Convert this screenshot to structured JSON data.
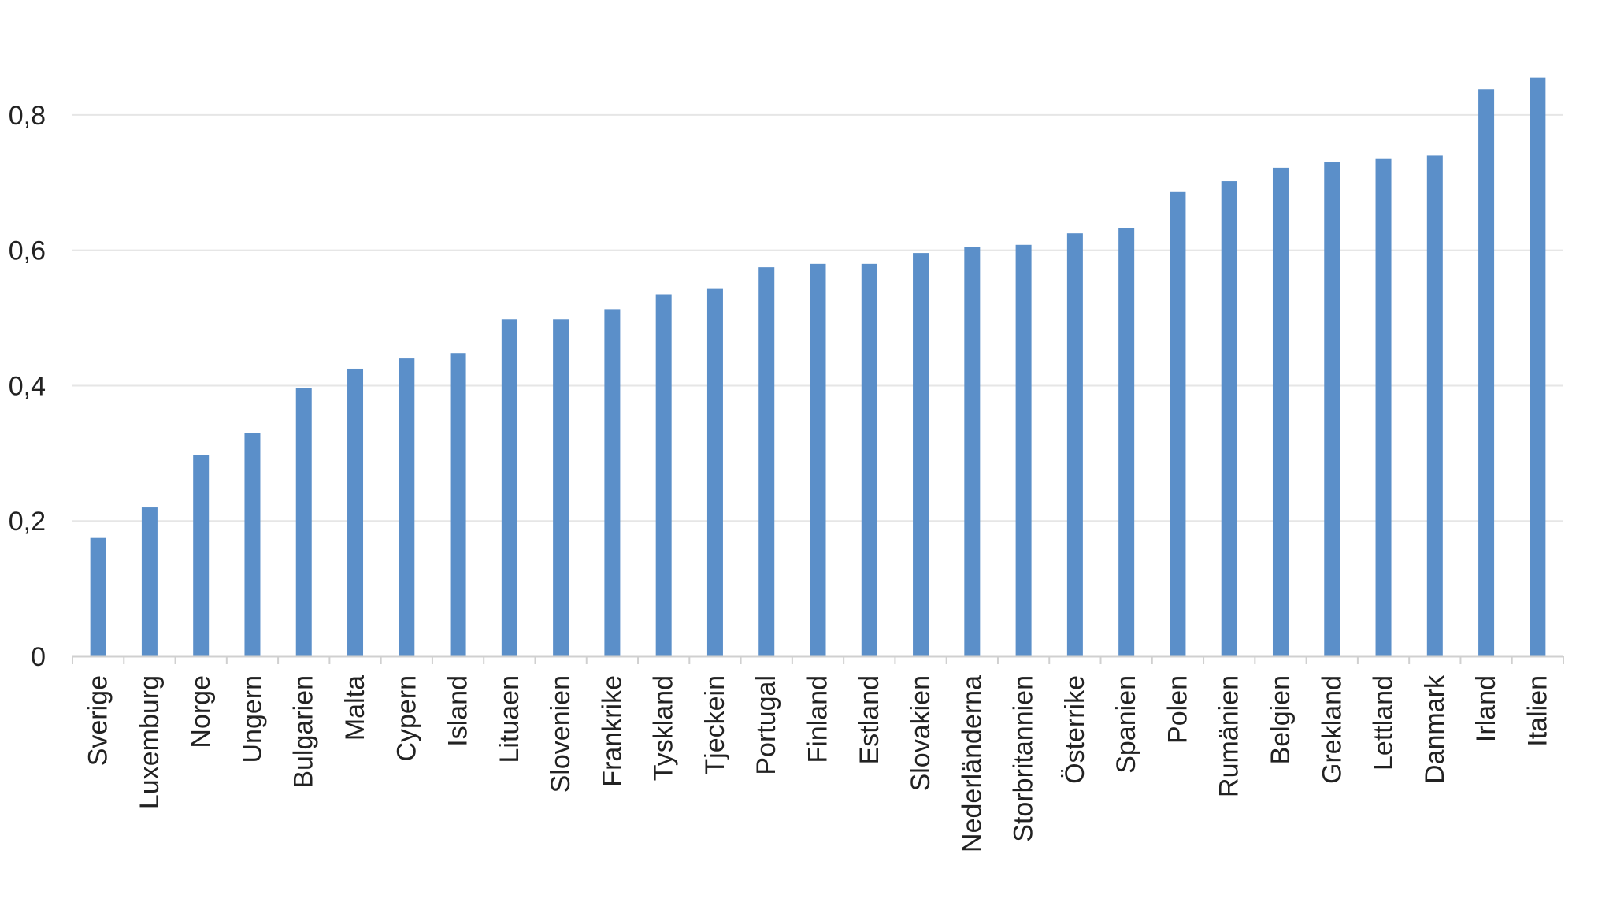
{
  "chart_data": {
    "type": "bar",
    "title": "",
    "xlabel": "",
    "ylabel": "",
    "categories": [
      "Sverige",
      "Luxemburg",
      "Norge",
      "Ungern",
      "Bulgarien",
      "Malta",
      "Cypern",
      "Island",
      "Lituaen",
      "Slovenien",
      "Frankrike",
      "Tyskland",
      "Tjeckein",
      "Portugal",
      "Finland",
      "Estland",
      "Slovakien",
      "Nederländerna",
      "Storbritannien",
      "Österrike",
      "Spanien",
      "Polen",
      "Rumänien",
      "Belgien",
      "Grekland",
      "Lettland",
      "Danmark",
      "Irland",
      "Italien"
    ],
    "values": [
      0.175,
      0.22,
      0.298,
      0.33,
      0.397,
      0.425,
      0.44,
      0.448,
      0.498,
      0.498,
      0.513,
      0.535,
      0.543,
      0.575,
      0.58,
      0.58,
      0.596,
      0.605,
      0.608,
      0.625,
      0.633,
      0.686,
      0.702,
      0.722,
      0.73,
      0.735,
      0.74,
      0.838,
      0.855
    ],
    "ylim": [
      0,
      0.9
    ],
    "yticks": [
      0,
      0.2,
      0.4,
      0.6,
      0.8
    ],
    "ytick_labels": [
      "0",
      "0,2",
      "0,4",
      "0,6",
      "0,8"
    ],
    "grid": true,
    "legend": "none",
    "colors": {
      "bar": "#5b8fc9",
      "grid": "#e6e6e6",
      "axis": "#d0d0d0",
      "text": "#222222"
    }
  }
}
